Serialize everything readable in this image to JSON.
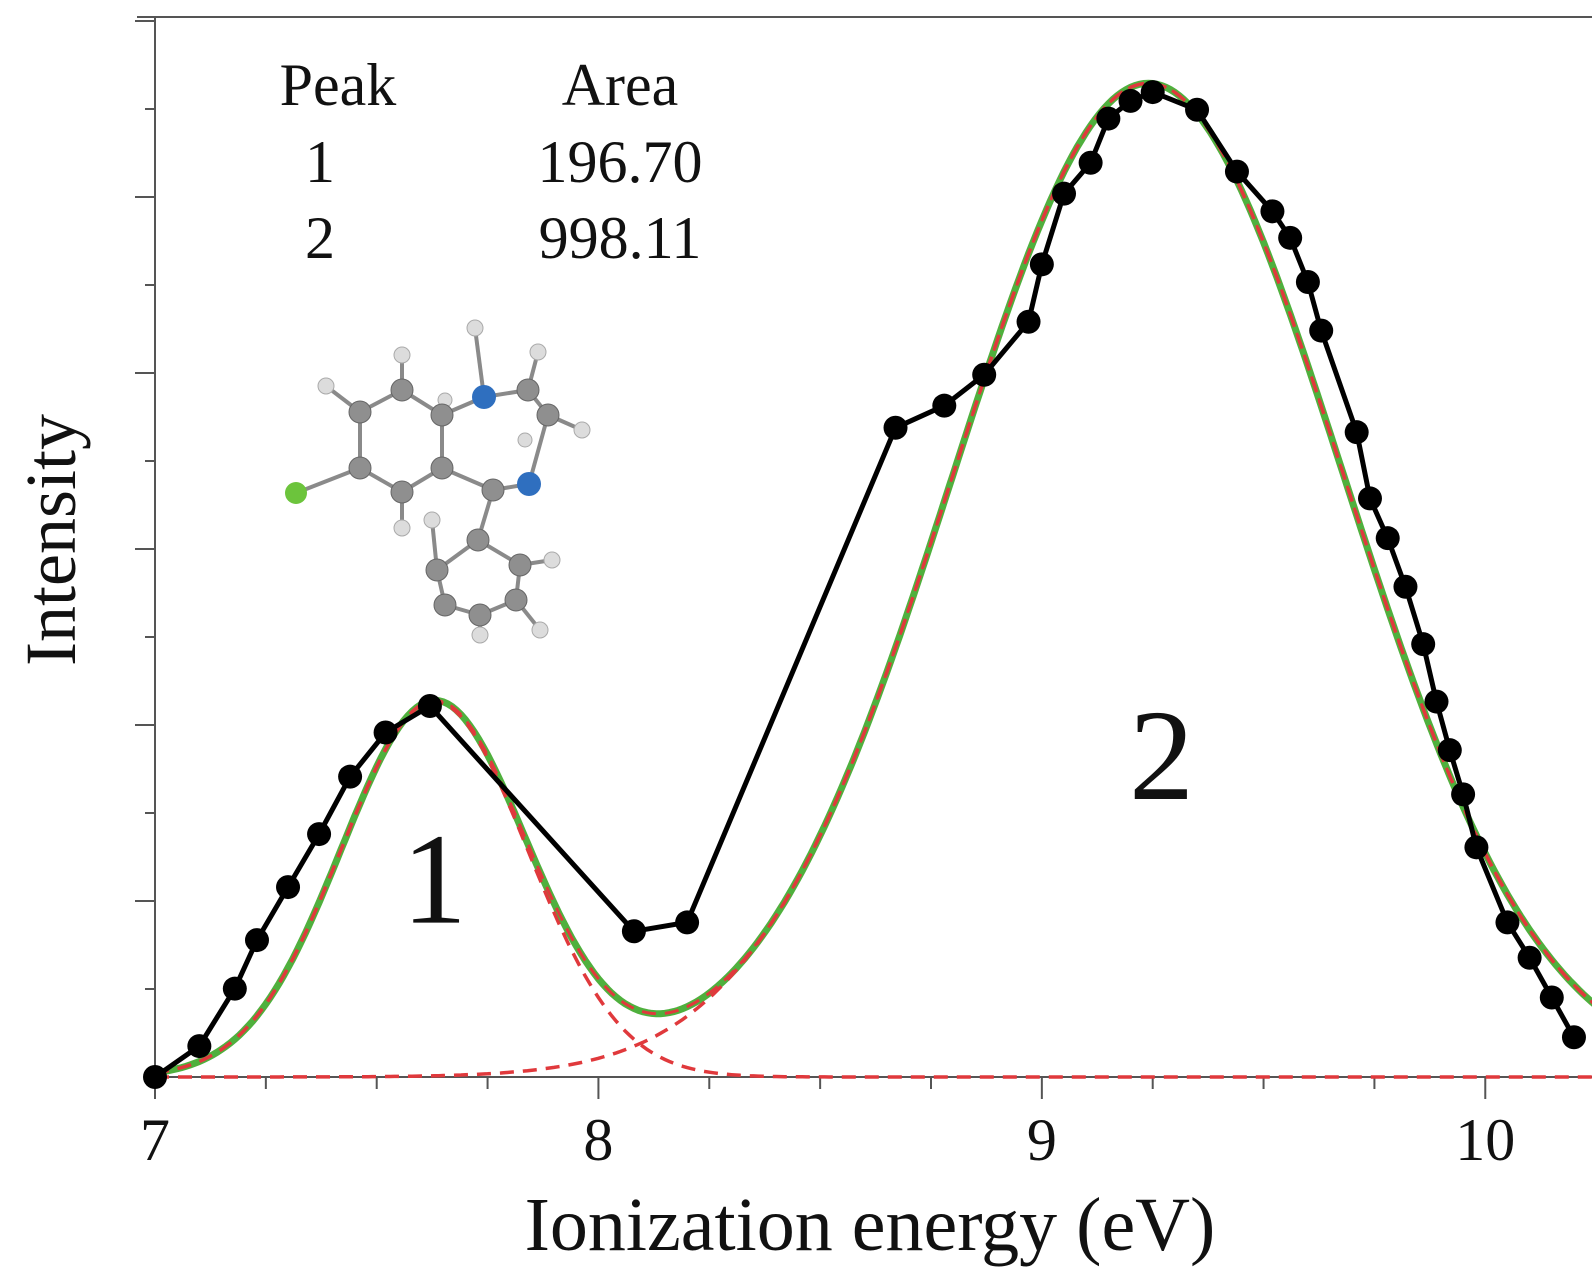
{
  "chart_data": {
    "type": "line",
    "xlabel": "Ionization energy  (eV)",
    "ylabel": "Intensity",
    "xlim": [
      7.0,
      10.2
    ],
    "ylim": [
      0,
      1.2
    ],
    "x_ticks": [
      "7",
      "8",
      "9",
      "10"
    ],
    "table": {
      "headers": [
        "Peak",
        "Area"
      ],
      "rows": [
        [
          "1",
          "196.70"
        ],
        [
          "2",
          "998.11"
        ]
      ]
    },
    "peak_labels": [
      {
        "text": "1",
        "x": 7.63,
        "y": 0.3
      },
      {
        "text": "2",
        "x": 9.27,
        "y": 0.44
      }
    ],
    "experimental": {
      "x": [
        7.0,
        7.1,
        7.18,
        7.23,
        7.3,
        7.37,
        7.44,
        7.52,
        7.62,
        8.08,
        8.2,
        8.67,
        8.78,
        8.87,
        8.97,
        9.0,
        9.05,
        9.11,
        9.15,
        9.2,
        9.25,
        9.35,
        9.44,
        9.52,
        9.56,
        9.6,
        9.63,
        9.71,
        9.74,
        9.78,
        9.82,
        9.86,
        9.89,
        9.92,
        9.95,
        9.98,
        10.05,
        10.1,
        10.15,
        10.2
      ],
      "y": [
        0.0,
        0.035,
        0.1,
        0.155,
        0.215,
        0.275,
        0.34,
        0.39,
        0.42,
        0.165,
        0.175,
        0.735,
        0.76,
        0.795,
        0.855,
        0.92,
        1.0,
        1.035,
        1.085,
        1.105,
        1.115,
        1.095,
        1.025,
        0.98,
        0.95,
        0.9,
        0.845,
        0.73,
        0.655,
        0.61,
        0.555,
        0.49,
        0.425,
        0.37,
        0.32,
        0.26,
        0.175,
        0.135,
        0.09,
        0.045
      ]
    },
    "peak1_fit": {
      "center": 7.63,
      "height": 0.425,
      "sigma": 0.21
    },
    "peak2_fit": {
      "center": 9.24,
      "height": 1.125,
      "sigma": 0.44
    },
    "colors": {
      "experimental": "#000000",
      "total_fit": "#4fb03d",
      "components": "#e0393c",
      "axis": "#555555"
    }
  }
}
